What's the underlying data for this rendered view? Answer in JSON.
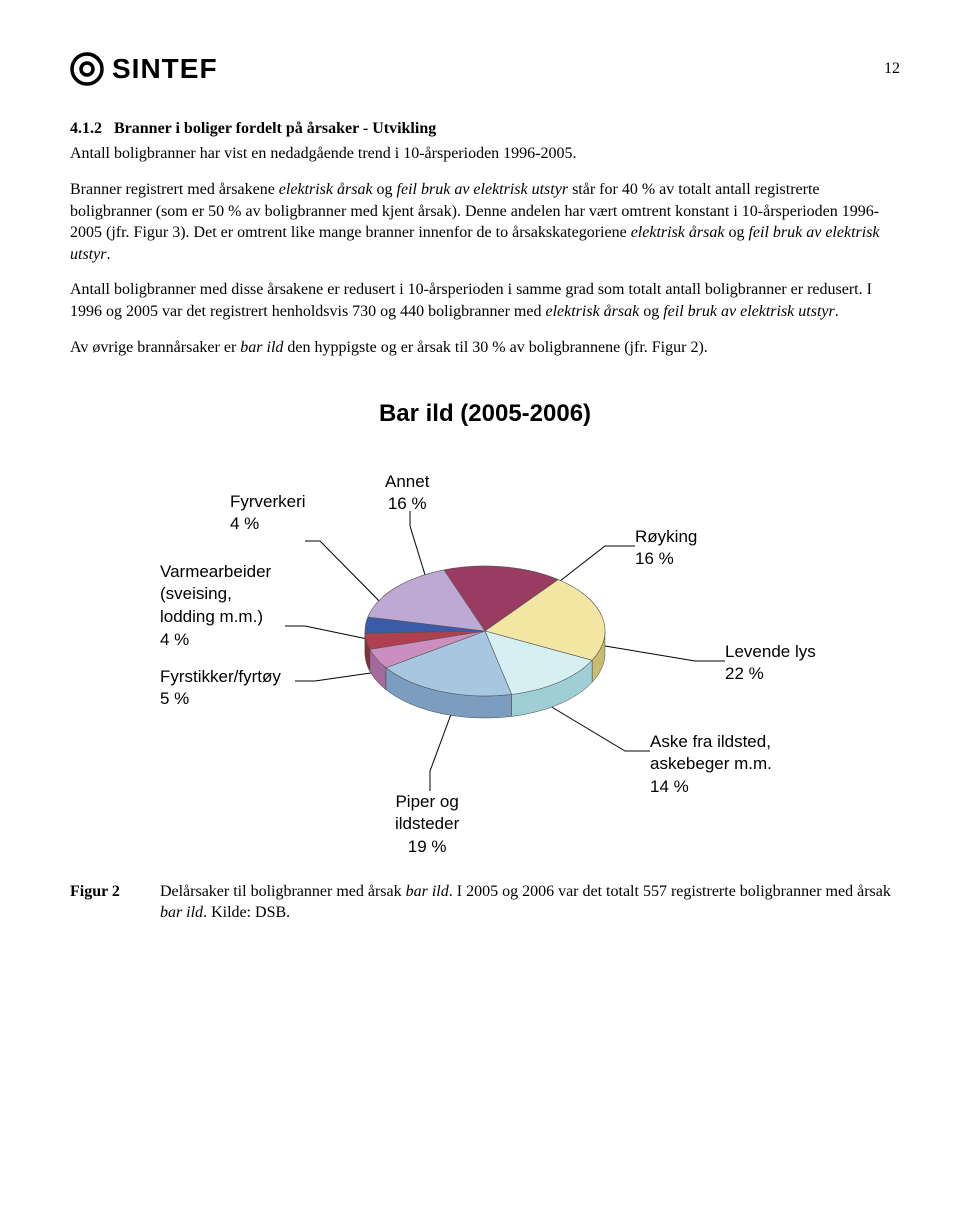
{
  "page_number": "12",
  "logo_text": "SINTEF",
  "section": {
    "number": "4.1.2",
    "title": "Branner i boliger fordelt på årsaker - Utvikling"
  },
  "paragraphs": {
    "p1": "Antall boligbranner har vist en nedadgående trend i 10-årsperioden 1996-2005.",
    "p2a": "Branner registrert med årsakene ",
    "p2b_italic": "elektrisk årsak",
    "p2c": " og ",
    "p2d_italic": "feil bruk av elektrisk utstyr",
    "p2e": " står for 40 % av totalt antall registrerte boligbranner (som er 50 % av boligbranner med kjent årsak). Denne andelen har vært omtrent konstant i 10-årsperioden 1996-2005 (jfr. Figur 3). Det er omtrent like mange branner innenfor de to årsakskategoriene ",
    "p2f_italic": "elektrisk årsak",
    "p2g": " og ",
    "p2h_italic": "feil bruk av elektrisk utstyr",
    "p2i": ".",
    "p3a": "Antall boligbranner med disse årsakene er redusert i 10-årsperioden i samme grad som totalt antall boligbranner er redusert. I 1996 og 2005 var det registrert henholdsvis 730 og 440 boligbranner med ",
    "p3b_italic": "elektrisk årsak",
    "p3c": " og ",
    "p3d_italic": "feil bruk av elektrisk utstyr",
    "p3e": ".",
    "p4a": "Av øvrige brannårsaker er ",
    "p4b_italic": "bar ild",
    "p4c": " den hyppigste og er årsak til 30 % av boligbrannene (jfr. Figur 2)."
  },
  "chart": {
    "type": "pie-3d",
    "title": "Bar ild (2005-2006)",
    "font_family": "Arial",
    "title_fontsize": 24,
    "label_fontsize": 17,
    "background_color": "#ffffff",
    "leader_color": "#000000",
    "slices": [
      {
        "label_line1": "Røyking",
        "label_line2": "16 %",
        "value": 16,
        "top_color": "#9a3c62",
        "side_color": "#742b49"
      },
      {
        "label_line1": "Levende lys",
        "label_line2": "22 %",
        "value": 22,
        "top_color": "#f2e6a2",
        "side_color": "#c9bc6f"
      },
      {
        "label_line1": "Aske fra ildsted,",
        "label_line2": "askebeger m.m.",
        "label_line3": "14 %",
        "value": 14,
        "top_color": "#d6eff2",
        "side_color": "#9fcfd4"
      },
      {
        "label_line1": "Piper og",
        "label_line2": "ildsteder",
        "label_line3": "19 %",
        "value": 19,
        "top_color": "#a7c6df",
        "side_color": "#7a9dc0"
      },
      {
        "label_line1": "Fyrstikker/fyrtøy",
        "label_line2": "5 %",
        "value": 5,
        "top_color": "#ca8fc0",
        "side_color": "#a46a9c"
      },
      {
        "label_line1": "Varmearbeider",
        "label_line2": "(sveising,",
        "label_line3": "lodding m.m.)",
        "label_line4": "4 %",
        "value": 4,
        "top_color": "#b04050",
        "side_color": "#82303c"
      },
      {
        "label_line1": "Fyrverkeri",
        "label_line2": "4 %",
        "value": 4,
        "top_color": "#3b5aa8",
        "side_color": "#2b4280"
      },
      {
        "label_line1": "Annet",
        "label_line2": "16 %",
        "value": 16,
        "top_color": "#bda9d4",
        "side_color": "#9683b3"
      }
    ]
  },
  "figure_caption": {
    "label": "Figur 2",
    "text_a": "Delårsaker til boligbranner med årsak ",
    "text_b_italic": "bar ild",
    "text_c": ". I 2005 og 2006 var det totalt 557 registrerte boligbranner med årsak ",
    "text_d_italic": "bar ild",
    "text_e": ". Kilde: DSB."
  }
}
